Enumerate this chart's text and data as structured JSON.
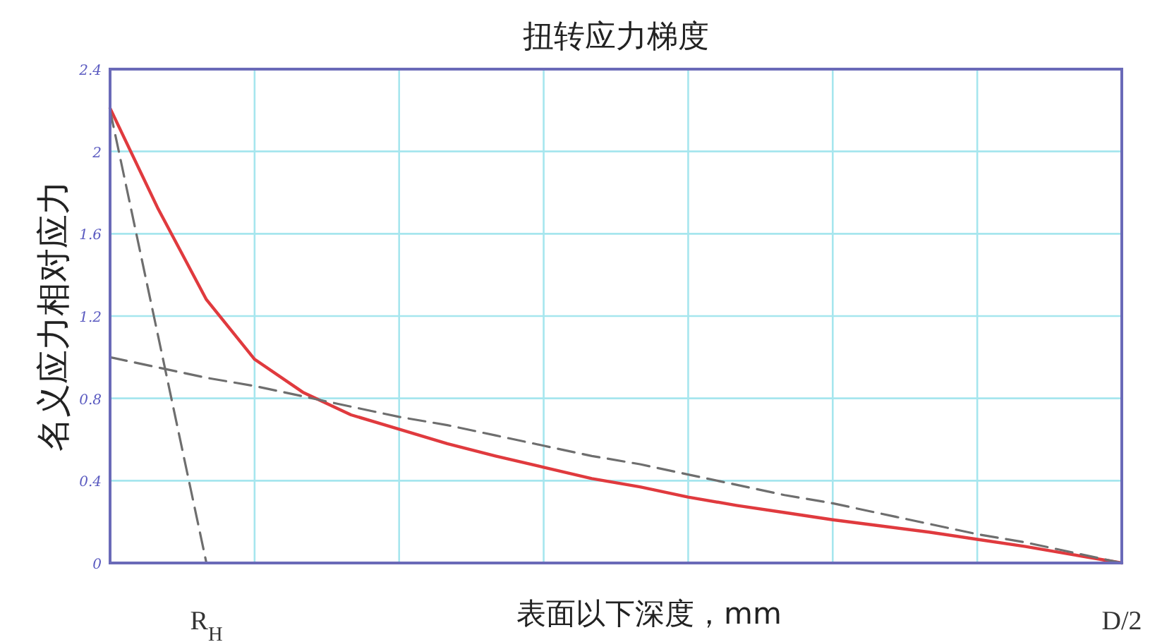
{
  "chart_data": {
    "type": "line",
    "title": "扭转应力梯度",
    "xlabel": "表面以下深度，mm",
    "ylabel": "名义应力相对应力",
    "categories": [
      null,
      null,
      "R$_{H}$",
      null,
      null,
      null,
      null,
      null,
      null,
      null,
      null,
      null,
      null,
      null,
      null,
      null,
      null,
      null,
      null,
      null,
      null,
      "D/2"
    ],
    "ylim": [
      0,
      2.4
    ],
    "yticks": [
      0,
      0.4,
      0.8,
      1.2,
      1.6,
      2,
      2.4
    ],
    "grid": true,
    "series": [
      {
        "color": "#e03a3e",
        "line_style": "solid",
        "values": [
          2.21,
          1.72,
          1.28,
          0.99,
          0.83,
          0.72,
          0.65,
          0.58,
          0.52,
          0.465,
          0.41,
          0.37,
          0.32,
          0.28,
          0.245,
          0.21,
          0.18,
          0.15,
          0.115,
          0.08,
          0.04,
          0
        ]
      },
      {
        "color": "#6e6e6e",
        "line_style": "dashed",
        "values": [
          1,
          0.95,
          0.9,
          0.86,
          0.81,
          0.76,
          0.71,
          0.67,
          0.62,
          0.57,
          0.52,
          0.48,
          0.43,
          0.38,
          0.33,
          0.29,
          0.24,
          0.19,
          0.14,
          0.1,
          0.05,
          0
        ]
      },
      {
        "color": "#6e6e6e",
        "line_style": "dashed",
        "values": [
          2.2,
          1.1,
          0,
          null,
          null,
          null,
          null,
          null,
          null,
          null,
          null,
          null,
          null,
          null,
          null,
          null,
          null,
          null,
          null,
          null,
          null,
          null
        ]
      }
    ]
  }
}
